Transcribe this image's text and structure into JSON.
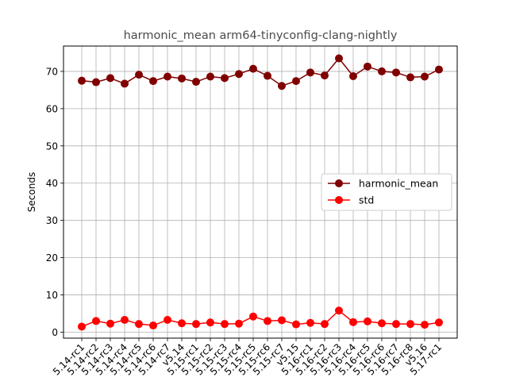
{
  "chart_data": {
    "type": "line",
    "title": "harmonic_mean arm64-tinyconfig-clang-nightly",
    "xlabel": "",
    "ylabel": "Seconds",
    "ylim": [
      -1.6,
      76.8
    ],
    "yticks": [
      0,
      10,
      20,
      30,
      40,
      50,
      60,
      70
    ],
    "grid": true,
    "legend_position": "center-right",
    "categories": [
      "5.14-rc1",
      "5.14-rc2",
      "5.14-rc3",
      "5.14-rc4",
      "5.14-rc5",
      "5.14-rc6",
      "5.14-rc7",
      "v5.14",
      "5.15-rc1",
      "5.15-rc2",
      "5.15-rc3",
      "5.15-rc4",
      "5.15-rc5",
      "5.15-rc6",
      "5.15-rc7",
      "v5.15",
      "5.16-rc1",
      "5.16-rc2",
      "5.16-rc3",
      "5.16-rc4",
      "5.16-rc5",
      "5.16-rc6",
      "5.16-rc7",
      "5.16-rc8",
      "v5.16",
      "5.17-rc1"
    ],
    "series": [
      {
        "name": "harmonic_mean",
        "color": "#800000",
        "values": [
          67.5,
          67.1,
          68.2,
          66.7,
          69.1,
          67.4,
          68.6,
          68.1,
          67.2,
          68.6,
          68.2,
          69.3,
          70.7,
          68.8,
          66.1,
          67.4,
          69.7,
          68.9,
          73.5,
          68.7,
          71.3,
          70.0,
          69.7,
          68.4,
          68.6,
          70.5
        ]
      },
      {
        "name": "std",
        "color": "#ff0000",
        "values": [
          1.5,
          3.0,
          2.3,
          3.3,
          2.2,
          1.8,
          3.3,
          2.4,
          2.2,
          2.6,
          2.2,
          2.3,
          4.2,
          3.0,
          3.2,
          2.1,
          2.5,
          2.2,
          5.8,
          2.7,
          2.9,
          2.4,
          2.2,
          2.2,
          2.0,
          2.6
        ]
      }
    ]
  }
}
